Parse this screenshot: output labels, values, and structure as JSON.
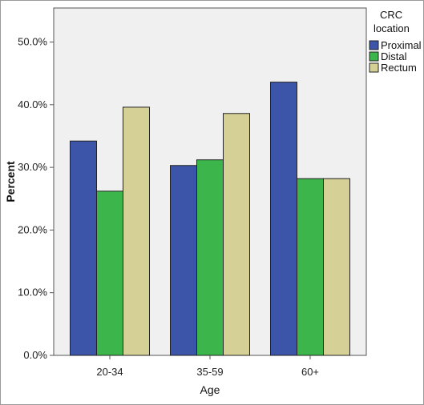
{
  "chart_data": {
    "type": "bar",
    "xlabel": "Age",
    "ylabel": "Percent",
    "categories": [
      "20-34",
      "35-59",
      "60+"
    ],
    "y_ticks": [
      "0.0%",
      "10.0%",
      "20.0%",
      "30.0%",
      "40.0%",
      "50.0%"
    ],
    "ylim": [
      0,
      50
    ],
    "grid": false,
    "legend": {
      "title_line1": "CRC",
      "title_line2": "location",
      "placement": "right"
    },
    "series": [
      {
        "name": "Proximal",
        "color": "#3d55a8",
        "values": [
          34.2,
          30.3,
          43.6
        ]
      },
      {
        "name": "Distal",
        "color": "#3cb54a",
        "values": [
          26.2,
          31.2,
          28.2
        ]
      },
      {
        "name": "Rectum",
        "color": "#d5d096",
        "values": [
          39.6,
          38.6,
          28.2
        ]
      }
    ]
  }
}
